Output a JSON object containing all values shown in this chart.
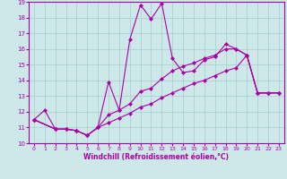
{
  "xlabel": "Windchill (Refroidissement éolien,°C)",
  "bg_color": "#cce8e8",
  "grid_color": "#aacccc",
  "line_color": "#aa00aa",
  "xlim": [
    -0.5,
    23.5
  ],
  "ylim": [
    10,
    19
  ],
  "xticks": [
    0,
    1,
    2,
    3,
    4,
    5,
    6,
    7,
    8,
    9,
    10,
    11,
    12,
    13,
    14,
    15,
    16,
    17,
    18,
    19,
    20,
    21,
    22,
    23
  ],
  "yticks": [
    10,
    11,
    12,
    13,
    14,
    15,
    16,
    17,
    18,
    19
  ],
  "lines": [
    {
      "x": [
        0,
        1,
        2
      ],
      "y": [
        11.5,
        12.1,
        10.9
      ]
    },
    {
      "x": [
        0,
        2,
        3,
        4,
        5,
        6,
        7,
        8,
        9,
        10,
        11,
        12,
        13,
        14,
        15,
        16,
        17,
        18,
        19,
        20,
        21,
        22,
        23
      ],
      "y": [
        11.5,
        10.9,
        10.9,
        10.8,
        10.5,
        11.0,
        13.9,
        12.1,
        16.6,
        18.8,
        17.9,
        18.9,
        15.4,
        14.5,
        14.6,
        15.3,
        15.5,
        16.3,
        16.0,
        15.6,
        13.2,
        13.2,
        13.2
      ]
    },
    {
      "x": [
        0,
        2,
        3,
        4,
        5,
        6,
        7,
        8,
        9,
        10,
        11,
        12,
        13,
        14,
        15,
        16,
        17,
        18,
        19,
        20,
        21,
        22,
        23
      ],
      "y": [
        11.5,
        10.9,
        10.9,
        10.8,
        10.5,
        11.0,
        11.8,
        12.1,
        12.5,
        13.3,
        13.5,
        14.1,
        14.6,
        14.9,
        15.1,
        15.4,
        15.6,
        16.0,
        16.0,
        15.6,
        13.2,
        13.2,
        13.2
      ]
    },
    {
      "x": [
        0,
        2,
        3,
        4,
        5,
        6,
        7,
        8,
        9,
        10,
        11,
        12,
        13,
        14,
        15,
        16,
        17,
        18,
        19,
        20,
        21,
        22,
        23
      ],
      "y": [
        11.5,
        10.9,
        10.9,
        10.8,
        10.5,
        11.0,
        11.3,
        11.6,
        11.9,
        12.3,
        12.5,
        12.9,
        13.2,
        13.5,
        13.8,
        14.0,
        14.3,
        14.6,
        14.8,
        15.6,
        13.2,
        13.2,
        13.2
      ]
    }
  ]
}
